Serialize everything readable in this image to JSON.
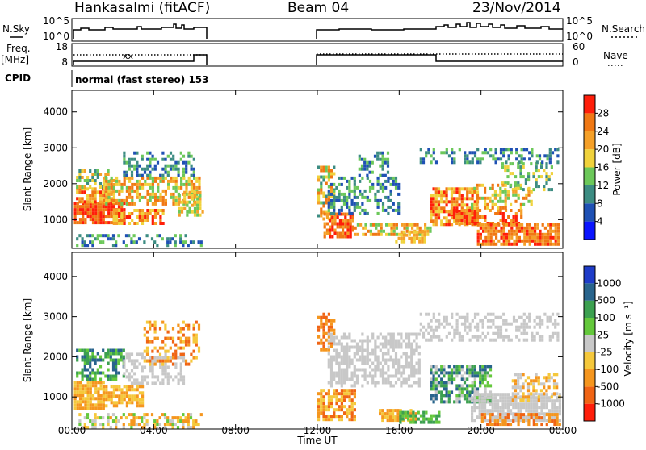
{
  "header": {
    "station": "Hankasalmi (fitACF)",
    "beam": "Beam 04",
    "date": "23/Nov/2014"
  },
  "strip_labels": {
    "nsky": "N.Sky",
    "nsky_ticks": [
      "10^5",
      "10^0"
    ],
    "nsearch": "N.Search",
    "nsearch_ticks": [
      "10^5",
      "10^0"
    ],
    "freq": "Freq.",
    "freq_unit": "[MHz]",
    "freq_ticks": [
      "18",
      "8"
    ],
    "nave": "Nave",
    "nave_ticks": [
      "60",
      "0"
    ],
    "cpid": "CPID",
    "cpid_value": "normal (fast stereo) 153"
  },
  "chart_data": [
    {
      "type": "heatmap",
      "panel": "power",
      "ylabel": "Slant Range [km]",
      "yticks": [
        "1000",
        "2000",
        "3000",
        "4000"
      ],
      "ylim": [
        200,
        4600
      ],
      "xticks": [
        "00:00",
        "04:00",
        "08:00",
        "12:00",
        "16:00",
        "20:00",
        "00:00"
      ],
      "xlim": [
        0,
        24
      ],
      "data_gap_hours": [
        6.5,
        12.0
      ],
      "colorbar_label": "Power [dB]",
      "colorbar_ticks": [
        "4",
        "8",
        "12",
        "16",
        "20",
        "24",
        "28"
      ],
      "colorbar_colors": [
        "#0a14ff",
        "#1e50b4",
        "#3c8c82",
        "#6cc85a",
        "#f0d23c",
        "#f5a028",
        "#f07814",
        "#ff1e0a"
      ],
      "zlim": [
        0,
        32
      ]
    },
    {
      "type": "heatmap",
      "panel": "velocity",
      "ylabel": "Slant Range [km]",
      "yticks": [
        "1000",
        "2000",
        "3000",
        "4000"
      ],
      "ylim": [
        200,
        4600
      ],
      "xlabel": "Time UT",
      "xticks": [
        "00:00",
        "04:00",
        "08:00",
        "12:00",
        "16:00",
        "20:00",
        "00:00"
      ],
      "xlim": [
        0,
        24
      ],
      "data_gap_hours": [
        6.5,
        12.0
      ],
      "colorbar_label": "Velocity [m s⁻¹]",
      "colorbar_ticks": [
        "1000",
        "500",
        "100",
        "25",
        "-25",
        "-100",
        "-500",
        "-1000"
      ],
      "colorbar_colors": [
        "#1e3cc8",
        "#28648c",
        "#3ca050",
        "#64c83c",
        "#c8c8c8",
        "#f5c83c",
        "#f5961e",
        "#f06414",
        "#ff1e0a"
      ]
    }
  ]
}
